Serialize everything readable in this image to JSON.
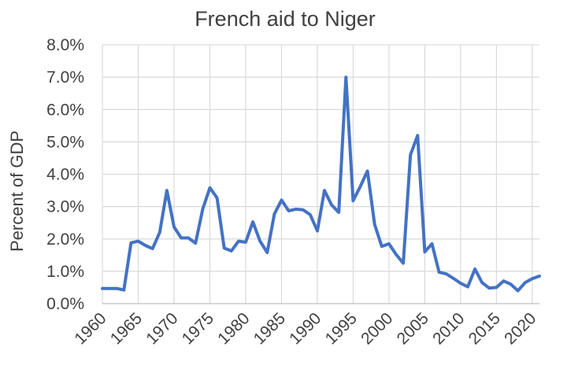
{
  "chart_data": {
    "type": "line",
    "title": "French aid to Niger",
    "xlabel": "",
    "ylabel": "Percent of GDP",
    "ylim": [
      0,
      8
    ],
    "xlim": [
      1960,
      2021
    ],
    "y_ticks": [
      "0.0%",
      "1.0%",
      "2.0%",
      "3.0%",
      "4.0%",
      "5.0%",
      "6.0%",
      "7.0%",
      "8.0%"
    ],
    "x_ticks": [
      "1960",
      "1965",
      "1970",
      "1975",
      "1980",
      "1985",
      "1990",
      "1995",
      "2000",
      "2005",
      "2010",
      "2015",
      "2020"
    ],
    "grid": true,
    "legend": "none",
    "series": [
      {
        "color": "#4472c4",
        "x": [
          1960,
          1961,
          1962,
          1963,
          1964,
          1965,
          1966,
          1967,
          1968,
          1969,
          1970,
          1971,
          1972,
          1973,
          1974,
          1975,
          1976,
          1977,
          1978,
          1979,
          1980,
          1981,
          1982,
          1983,
          1984,
          1985,
          1986,
          1987,
          1988,
          1989,
          1990,
          1991,
          1992,
          1993,
          1994,
          1995,
          1996,
          1997,
          1998,
          1999,
          2000,
          2001,
          2002,
          2003,
          2004,
          2005,
          2006,
          2007,
          2008,
          2009,
          2010,
          2011,
          2012,
          2013,
          2014,
          2015,
          2016,
          2017,
          2018,
          2019,
          2020,
          2021
        ],
        "values": [
          0.47,
          0.47,
          0.47,
          0.42,
          1.88,
          1.93,
          1.8,
          1.7,
          2.2,
          3.5,
          2.37,
          2.03,
          2.03,
          1.87,
          2.92,
          3.58,
          3.27,
          1.72,
          1.63,
          1.93,
          1.9,
          2.53,
          1.93,
          1.58,
          2.77,
          3.2,
          2.87,
          2.92,
          2.9,
          2.75,
          2.25,
          3.5,
          3.05,
          2.82,
          7.0,
          3.18,
          3.62,
          4.1,
          2.45,
          1.77,
          1.85,
          1.52,
          1.25,
          4.6,
          5.2,
          1.6,
          1.85,
          0.97,
          0.92,
          0.78,
          0.63,
          0.52,
          1.07,
          0.65,
          0.48,
          0.5,
          0.7,
          0.6,
          0.4,
          0.65,
          0.77,
          0.85
        ]
      }
    ]
  }
}
